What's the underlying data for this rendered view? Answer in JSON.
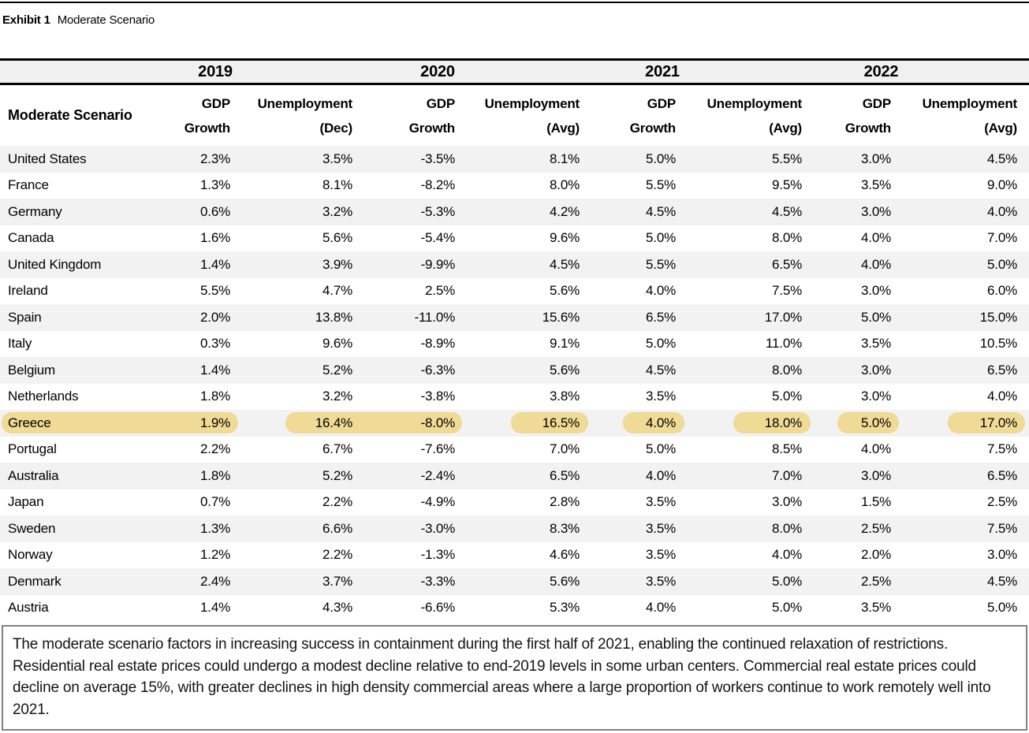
{
  "title": {
    "exhibit": "Exhibit 1",
    "name": "Moderate Scenario"
  },
  "table": {
    "corner_label": "Moderate Scenario",
    "year_groups": [
      {
        "year": "2019",
        "gdp_line1": "GDP",
        "gdp_line2": "Growth",
        "unemp_line1": "Unemployment",
        "unemp_line2": "(Dec)"
      },
      {
        "year": "2020",
        "gdp_line1": "GDP",
        "gdp_line2": "Growth",
        "unemp_line1": "Unemployment",
        "unemp_line2": "(Avg)"
      },
      {
        "year": "2021",
        "gdp_line1": "GDP",
        "gdp_line2": "Growth",
        "unemp_line1": "Unemployment",
        "unemp_line2": "(Avg)"
      },
      {
        "year": "2022",
        "gdp_line1": "GDP",
        "gdp_line2": "Growth",
        "unemp_line1": "Unemployment",
        "unemp_line2": "(Avg)"
      }
    ],
    "rows": [
      {
        "country": "United States",
        "values": [
          "2.3%",
          "3.5%",
          "-3.5%",
          "8.1%",
          "5.0%",
          "5.5%",
          "3.0%",
          "4.5%"
        ],
        "highlight": false
      },
      {
        "country": "France",
        "values": [
          "1.3%",
          "8.1%",
          "-8.2%",
          "8.0%",
          "5.5%",
          "9.5%",
          "3.5%",
          "9.0%"
        ],
        "highlight": false
      },
      {
        "country": "Germany",
        "values": [
          "0.6%",
          "3.2%",
          "-5.3%",
          "4.2%",
          "4.5%",
          "4.5%",
          "3.0%",
          "4.0%"
        ],
        "highlight": false
      },
      {
        "country": "Canada",
        "values": [
          "1.6%",
          "5.6%",
          "-5.4%",
          "9.6%",
          "5.0%",
          "8.0%",
          "4.0%",
          "7.0%"
        ],
        "highlight": false
      },
      {
        "country": "United Kingdom",
        "values": [
          "1.4%",
          "3.9%",
          "-9.9%",
          "4.5%",
          "5.5%",
          "6.5%",
          "4.0%",
          "5.0%"
        ],
        "highlight": false
      },
      {
        "country": "Ireland",
        "values": [
          "5.5%",
          "4.7%",
          "2.5%",
          "5.6%",
          "4.0%",
          "7.5%",
          "3.0%",
          "6.0%"
        ],
        "highlight": false
      },
      {
        "country": "Spain",
        "values": [
          "2.0%",
          "13.8%",
          "-11.0%",
          "15.6%",
          "6.5%",
          "17.0%",
          "5.0%",
          "15.0%"
        ],
        "highlight": false
      },
      {
        "country": "Italy",
        "values": [
          "0.3%",
          "9.6%",
          "-8.9%",
          "9.1%",
          "5.0%",
          "11.0%",
          "3.5%",
          "10.5%"
        ],
        "highlight": false
      },
      {
        "country": "Belgium",
        "values": [
          "1.4%",
          "5.2%",
          "-6.3%",
          "5.6%",
          "4.5%",
          "8.0%",
          "3.0%",
          "6.5%"
        ],
        "highlight": false
      },
      {
        "country": "Netherlands",
        "values": [
          "1.8%",
          "3.2%",
          "-3.8%",
          "3.8%",
          "3.5%",
          "5.0%",
          "3.0%",
          "4.0%"
        ],
        "highlight": false
      },
      {
        "country": "Greece",
        "values": [
          "1.9%",
          "16.4%",
          "-8.0%",
          "16.5%",
          "4.0%",
          "18.0%",
          "5.0%",
          "17.0%"
        ],
        "highlight": true
      },
      {
        "country": "Portugal",
        "values": [
          "2.2%",
          "6.7%",
          "-7.6%",
          "7.0%",
          "5.0%",
          "8.5%",
          "4.0%",
          "7.5%"
        ],
        "highlight": false
      },
      {
        "country": "Australia",
        "values": [
          "1.8%",
          "5.2%",
          "-2.4%",
          "6.5%",
          "4.0%",
          "7.0%",
          "3.0%",
          "6.5%"
        ],
        "highlight": false
      },
      {
        "country": "Japan",
        "values": [
          "0.7%",
          "2.2%",
          "-4.9%",
          "2.8%",
          "3.5%",
          "3.0%",
          "1.5%",
          "2.5%"
        ],
        "highlight": false
      },
      {
        "country": "Sweden",
        "values": [
          "1.3%",
          "6.6%",
          "-3.0%",
          "8.3%",
          "3.5%",
          "8.0%",
          "2.5%",
          "7.5%"
        ],
        "highlight": false
      },
      {
        "country": "Norway",
        "values": [
          "1.2%",
          "2.2%",
          "-1.3%",
          "4.6%",
          "3.5%",
          "4.0%",
          "2.0%",
          "3.0%"
        ],
        "highlight": false
      },
      {
        "country": "Denmark",
        "values": [
          "2.4%",
          "3.7%",
          "-3.3%",
          "5.6%",
          "3.5%",
          "5.0%",
          "2.5%",
          "4.5%"
        ],
        "highlight": false
      },
      {
        "country": "Austria",
        "values": [
          "1.4%",
          "4.3%",
          "-6.6%",
          "5.3%",
          "4.0%",
          "5.0%",
          "3.5%",
          "5.0%"
        ],
        "highlight": false
      }
    ]
  },
  "footnote": "The moderate scenario factors in increasing success in containment during the first half of 2021, enabling the continued relaxation of restrictions. Residential real estate prices could undergo a modest decline relative to end-2019 levels in some urban centers. Commercial real estate prices could decline on average 15%, with greater declines in high density commercial areas where a large proportion of workers continue to work remotely well into 2021.",
  "colors": {
    "highlight": "#efdb95",
    "row_stripe": "#f2f2f2",
    "year_band": "#f0f0f0",
    "rule": "#000000"
  }
}
